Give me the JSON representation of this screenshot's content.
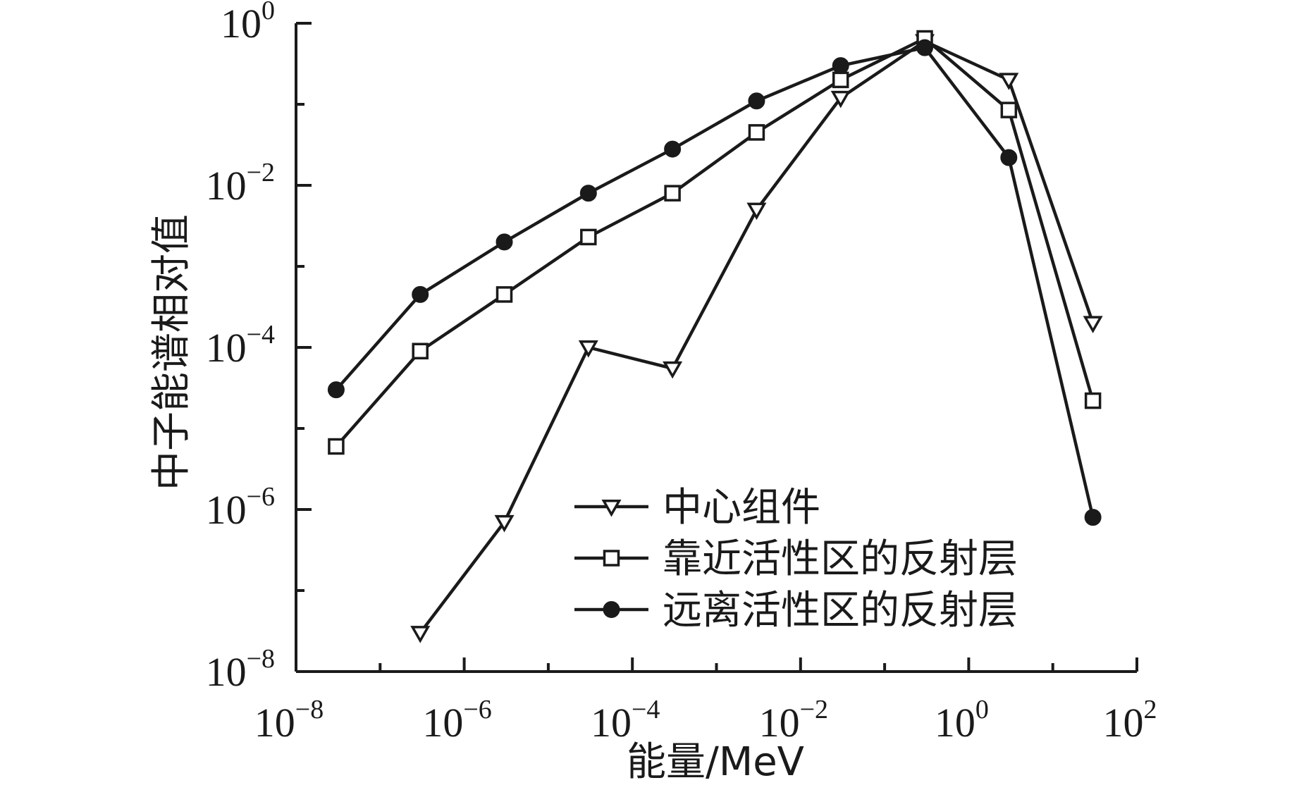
{
  "chart_data": {
    "type": "line",
    "title": "",
    "xlabel": "能量/MeV",
    "ylabel": "中子能谱相对值",
    "xscale": "log",
    "yscale": "log",
    "xlim": [
      1e-08,
      100
    ],
    "ylim": [
      1e-08,
      1
    ],
    "x_ticks": [
      {
        "base": "10",
        "exp": "−8"
      },
      {
        "base": "10",
        "exp": "−6"
      },
      {
        "base": "10",
        "exp": "−4"
      },
      {
        "base": "10",
        "exp": "−2"
      },
      {
        "base": "10",
        "exp": "0"
      },
      {
        "base": "10",
        "exp": "2"
      }
    ],
    "y_ticks": [
      {
        "base": "10",
        "exp": "0"
      },
      {
        "base": "10",
        "exp": "−2"
      },
      {
        "base": "10",
        "exp": "−4"
      },
      {
        "base": "10",
        "exp": "−6"
      },
      {
        "base": "10",
        "exp": "−8"
      }
    ],
    "grid": false,
    "legend_position": "lower-right",
    "series": [
      {
        "name": "中心组件",
        "marker": "triangle-down-open",
        "x": [
          3e-07,
          3e-06,
          3e-05,
          0.0003,
          0.003,
          0.03,
          0.3,
          3,
          30
        ],
        "y": [
          3e-08,
          7e-07,
          0.0001,
          5.5e-05,
          0.005,
          0.12,
          0.6,
          0.2,
          0.0002
        ]
      },
      {
        "name": "靠近活性区的反射层",
        "marker": "square-open",
        "x": [
          3e-08,
          3e-07,
          3e-06,
          3e-05,
          0.0003,
          0.003,
          0.03,
          0.3,
          3,
          30
        ],
        "y": [
          6e-06,
          9e-05,
          0.00045,
          0.0023,
          0.008,
          0.045,
          0.2,
          0.65,
          0.085,
          2.2e-05
        ]
      },
      {
        "name": "远离活性区的反射层",
        "marker": "circle-filled",
        "x": [
          3e-08,
          3e-07,
          3e-06,
          3e-05,
          0.0003,
          0.003,
          0.03,
          0.3,
          3,
          30
        ],
        "y": [
          3e-05,
          0.00045,
          0.002,
          0.008,
          0.028,
          0.11,
          0.3,
          0.5,
          0.022,
          8e-07
        ]
      }
    ]
  }
}
